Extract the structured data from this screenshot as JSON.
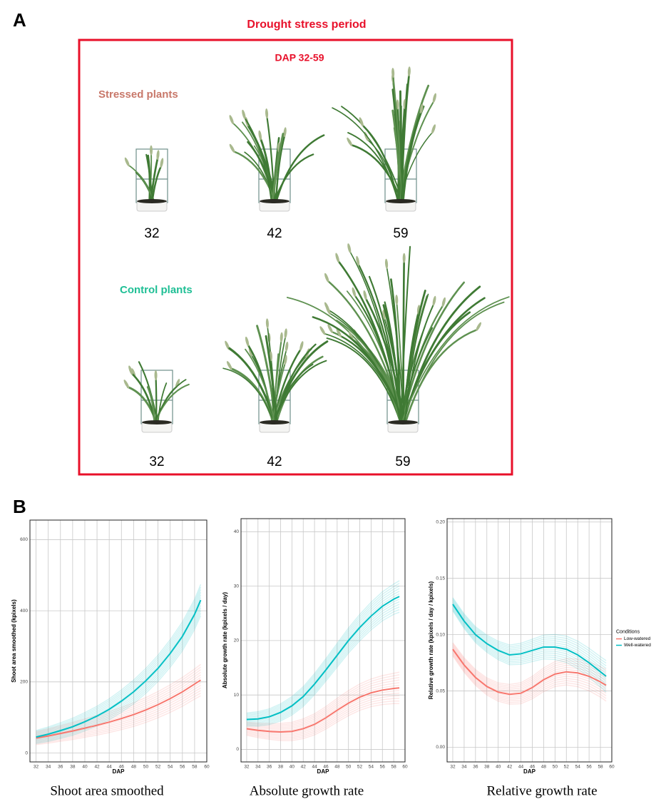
{
  "panel_a": {
    "label": "A",
    "title": "Drought stress period",
    "subtitle": "DAP 32-59",
    "groups": [
      {
        "name": "Stressed plants",
        "color": "#c8786a",
        "days": [
          32,
          42,
          59
        ]
      },
      {
        "name": "Control plants",
        "color": "#1fbf95",
        "days": [
          32,
          42,
          59
        ]
      }
    ]
  },
  "panel_b": {
    "label": "B"
  },
  "chart_data": [
    {
      "type": "line",
      "caption": "Shoot area smoothed",
      "x_label": "DAP",
      "y_label": "Shoot area smoothed (kpixels)",
      "x": [
        32,
        34,
        36,
        38,
        40,
        42,
        44,
        46,
        48,
        50,
        52,
        54,
        56,
        58,
        59
      ],
      "xlim": [
        31,
        60
      ],
      "xticks": [
        32,
        34,
        36,
        38,
        40,
        42,
        44,
        46,
        48,
        50,
        52,
        54,
        56,
        58,
        60
      ],
      "ylim": [
        -25,
        655
      ],
      "yticks": [
        0,
        200,
        400,
        600
      ],
      "grid": true,
      "series": [
        {
          "name": "Low-watered",
          "color": "#f8766d",
          "values": [
            42,
            48,
            55,
            62,
            70,
            78,
            87,
            97,
            108,
            121,
            136,
            153,
            172,
            194,
            205
          ]
        },
        {
          "name": "Well-watered",
          "color": "#00bfc4",
          "values": [
            45,
            53,
            63,
            74,
            88,
            104,
            123,
            146,
            172,
            203,
            238,
            280,
            328,
            390,
            430
          ]
        }
      ]
    },
    {
      "type": "line",
      "caption": "Absolute growth rate",
      "x_label": "DAP",
      "y_label": "Absolute growth rate (kpixels / day)",
      "x": [
        32,
        34,
        36,
        38,
        40,
        42,
        44,
        46,
        48,
        50,
        52,
        54,
        56,
        58,
        59
      ],
      "xlim": [
        31,
        60
      ],
      "xticks": [
        32,
        34,
        36,
        38,
        40,
        42,
        44,
        46,
        48,
        50,
        52,
        54,
        56,
        58,
        60
      ],
      "ylim": [
        -2.3,
        42.4
      ],
      "yticks": [
        0,
        10,
        20,
        30,
        40
      ],
      "grid": true,
      "series": [
        {
          "name": "Low-watered",
          "color": "#f8766d",
          "values": [
            3.8,
            3.5,
            3.3,
            3.2,
            3.3,
            3.8,
            4.6,
            5.8,
            7.2,
            8.5,
            9.6,
            10.4,
            10.9,
            11.2,
            11.3
          ]
        },
        {
          "name": "Well-watered",
          "color": "#00bfc4",
          "values": [
            5.5,
            5.6,
            6,
            6.8,
            8,
            9.7,
            12,
            14.6,
            17.3,
            20,
            22.4,
            24.5,
            26.3,
            27.6,
            28.1
          ]
        }
      ]
    },
    {
      "type": "line",
      "caption": "Relative growth rate",
      "x_label": "DAP",
      "y_label": "Relative growth rate (kpixels / day / kpixels)",
      "x": [
        32,
        34,
        36,
        38,
        40,
        42,
        44,
        46,
        48,
        50,
        52,
        54,
        56,
        58,
        59
      ],
      "xlim": [
        31,
        60
      ],
      "xticks": [
        32,
        34,
        36,
        38,
        40,
        42,
        44,
        46,
        48,
        50,
        52,
        54,
        56,
        58,
        60
      ],
      "ylim": [
        -0.013,
        0.203
      ],
      "yticks": [
        {
          "value": 0,
          "label": "0.00"
        },
        {
          "value": 0.05,
          "label": "0.05"
        },
        {
          "value": 0.1,
          "label": "0.10"
        },
        {
          "value": 0.15,
          "label": "0.15"
        },
        {
          "value": 0.2,
          "label": "0.20"
        }
      ],
      "grid": true,
      "legend": "right",
      "legend_title": "Conditions",
      "series": [
        {
          "name": "Low-watered",
          "color": "#f8766d",
          "values": [
            0.087,
            0.073,
            0.062,
            0.054,
            0.049,
            0.047,
            0.048,
            0.053,
            0.06,
            0.065,
            0.067,
            0.066,
            0.063,
            0.058,
            0.055
          ]
        },
        {
          "name": "Well-watered",
          "color": "#00bfc4",
          "values": [
            0.127,
            0.112,
            0.1,
            0.092,
            0.086,
            0.082,
            0.083,
            0.086,
            0.089,
            0.089,
            0.087,
            0.082,
            0.075,
            0.067,
            0.063
          ]
        }
      ]
    }
  ]
}
